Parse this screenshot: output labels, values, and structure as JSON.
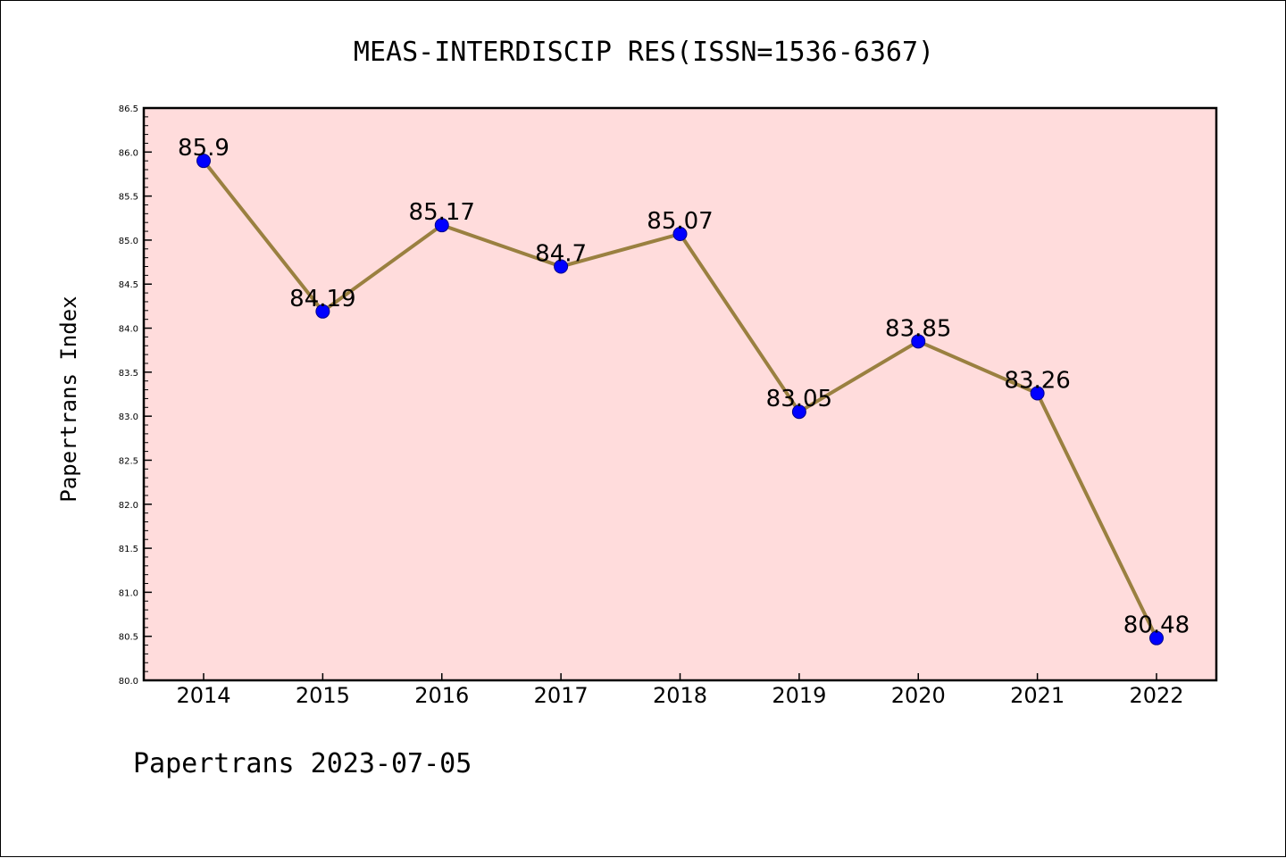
{
  "chart_data": {
    "type": "line",
    "title": "MEAS-INTERDISCIP RES(ISSN=1536-6367)",
    "xlabel": "",
    "ylabel": "Papertrans Index",
    "categories": [
      "2014",
      "2015",
      "2016",
      "2017",
      "2018",
      "2019",
      "2020",
      "2021",
      "2022"
    ],
    "series": [
      {
        "values": [
          85.9,
          84.19,
          85.17,
          84.7,
          85.07,
          83.05,
          83.85,
          83.26,
          80.48
        ],
        "data_labels": [
          "85.9",
          "84.19",
          "85.17",
          "84.7",
          "85.07",
          "83.05",
          "83.85",
          "83.26",
          "80.48"
        ]
      }
    ],
    "ylim": [
      80.0,
      86.5
    ],
    "yticks": [
      "80.0",
      "80.5",
      "81.0",
      "81.5",
      "82.0",
      "82.5",
      "83.0",
      "83.5",
      "84.0",
      "84.5",
      "85.0",
      "85.5",
      "86.0",
      "86.5"
    ],
    "grid": false,
    "legend": "none",
    "footer": "Papertrans 2023-07-05",
    "colors": {
      "plot_background": "#ffdcdc",
      "line": "#9a8040",
      "marker_fill": "#0000ff",
      "marker_edge": "#00008b"
    }
  }
}
